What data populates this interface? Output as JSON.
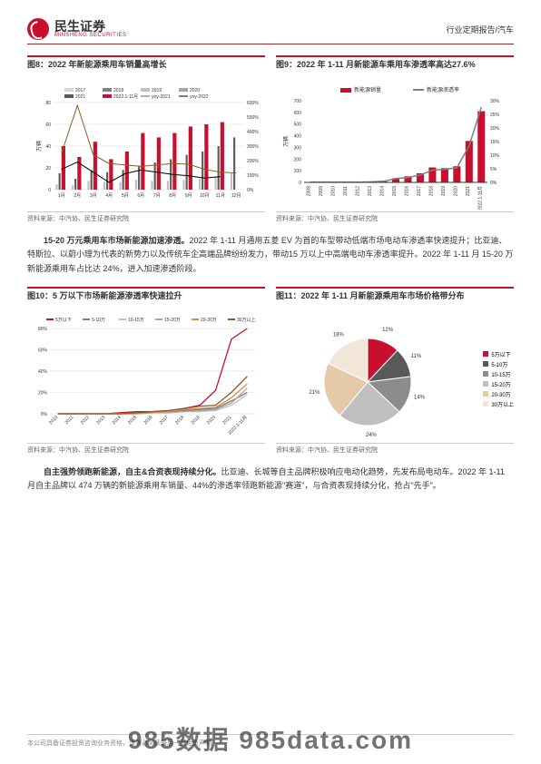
{
  "header": {
    "logo_cn": "民生证券",
    "logo_en": "MINSHENG SECURITIES",
    "right": "行业定期报告/汽车"
  },
  "fig8": {
    "title": "图8：2022 年新能源乘用车销量高增长",
    "source": "资料来源：中汽协、民生证券研究院",
    "type": "bar+line",
    "legend_bars": [
      {
        "label": "2017",
        "color": "#d9d9d9"
      },
      {
        "label": "2018",
        "color": "#7f7f7f"
      },
      {
        "label": "2019",
        "color": "#bfbfbf"
      },
      {
        "label": "2020",
        "color": "#a6a6a6"
      },
      {
        "label": "2021",
        "color": "#595959"
      },
      {
        "label": "2022.1-11月",
        "color": "#c8102e"
      }
    ],
    "legend_lines": [
      {
        "label": "yoy-2021",
        "color": "#8c5a2b"
      },
      {
        "label": "yoy-2022",
        "color": "#000000"
      }
    ],
    "y_left_label": "万辆",
    "y_left_ticks": [
      0,
      20,
      40,
      60,
      80
    ],
    "y_right_ticks": [
      "0%",
      "100%",
      "200%",
      "300%",
      "400%",
      "500%",
      "600%"
    ],
    "x": [
      "1月",
      "2月",
      "3月",
      "4月",
      "5月",
      "6月",
      "7月",
      "8月",
      "9月",
      "10月",
      "11月",
      "12月"
    ],
    "bars_2022": [
      40,
      30,
      44,
      28,
      35,
      52,
      48,
      52,
      58,
      60,
      62,
      0
    ],
    "bars_2021": [
      15,
      10,
      18,
      16,
      18,
      22,
      25,
      28,
      32,
      35,
      40,
      48
    ],
    "bars_grey": [
      5,
      4,
      8,
      7,
      7,
      9,
      8,
      8,
      9,
      10,
      12,
      15
    ],
    "line_2021": [
      250,
      580,
      240,
      180,
      170,
      160,
      170,
      180,
      175,
      140,
      120,
      115
    ],
    "line_2022": [
      140,
      190,
      120,
      50,
      110,
      135,
      120,
      105,
      95,
      80,
      90,
      0
    ]
  },
  "fig9": {
    "title": "图9：2022 年 1-11 月新能源车乘用车渗透率高达27.6%",
    "source": "资料来源：中汽协、民生证券研究院",
    "type": "bar+line",
    "legend": [
      {
        "label": "新能源销量",
        "color": "#c8102e",
        "kind": "bar"
      },
      {
        "label": "新能源渗透率",
        "color": "#7f7f7f",
        "kind": "line"
      }
    ],
    "y_left_label": "万辆",
    "y_left_ticks": [
      0,
      100,
      200,
      300,
      400,
      500,
      600,
      700
    ],
    "y_right_ticks": [
      "0%",
      "5%",
      "10%",
      "15%",
      "20%",
      "25%",
      "30%"
    ],
    "x": [
      "2008",
      "2009",
      "2010",
      "2011",
      "2012",
      "2013",
      "2014",
      "2015",
      "2016",
      "2017",
      "2018",
      "2019",
      "2020",
      "2021",
      "2022.1-11月"
    ],
    "bars": [
      1,
      1,
      1,
      1,
      2,
      3,
      8,
      35,
      52,
      78,
      128,
      122,
      138,
      355,
      610
    ],
    "line": [
      0.1,
      0.1,
      0.1,
      0.1,
      0.1,
      0.2,
      0.4,
      1.4,
      1.8,
      2.7,
      4.5,
      4.8,
      5.4,
      13.4,
      27.6
    ]
  },
  "para1_bold": "15-20 万元乘用车市场新能源加速渗透。",
  "para1_rest": "2022 年 1-11 月通用五菱 EV 为首的车型带动低端市场电动车渗透率快速提升；比亚迪、特斯拉、以蔚小理为代表的新势力以及传统车企高端品牌纷纷发力，带动15 万以上中高端电动车渗透率提升。2022 年 1-11 月 15-20 万新能源乘用车占比达 24%，进入加速渗透阶段。",
  "fig10": {
    "title": "图10：5 万以下市场新能源渗透率快速拉升",
    "source": "资料来源：中汽协、民生证券研究院",
    "type": "line",
    "legend": [
      {
        "label": "5万以下",
        "color": "#c8102e"
      },
      {
        "label": "5-10万",
        "color": "#7f7f7f"
      },
      {
        "label": "10-15万",
        "color": "#bfbfbf"
      },
      {
        "label": "15-20万",
        "color": "#a6a6a6"
      },
      {
        "label": "20-30万",
        "color": "#d98c4a"
      },
      {
        "label": "30万以上",
        "color": "#8c5a2b"
      }
    ],
    "y_ticks": [
      "0%",
      "20%",
      "40%",
      "60%",
      "80%"
    ],
    "x": [
      "2010",
      "2011",
      "2012",
      "2013",
      "2014",
      "2015",
      "2016",
      "2017",
      "2018",
      "2019",
      "2020",
      "2021",
      "2022.1-11月"
    ],
    "series": {
      "5万以下": [
        0,
        0,
        0,
        0,
        1,
        2,
        2,
        3,
        5,
        8,
        22,
        70,
        80
      ],
      "5-10万": [
        0,
        0,
        0,
        0,
        0,
        1,
        1,
        2,
        3,
        4,
        5,
        12,
        20
      ],
      "10-15万": [
        0,
        0,
        0,
        0,
        0,
        0,
        1,
        1,
        2,
        2,
        3,
        8,
        18
      ],
      "15-20万": [
        0,
        0,
        0,
        0,
        0,
        0,
        1,
        1,
        2,
        3,
        4,
        10,
        24
      ],
      "20-30万": [
        0,
        0,
        0,
        0,
        0,
        0,
        1,
        2,
        4,
        5,
        6,
        15,
        28
      ],
      "30万以上": [
        0,
        0,
        0,
        0,
        0,
        1,
        2,
        3,
        5,
        7,
        8,
        20,
        35
      ]
    }
  },
  "fig11": {
    "title": "图11：2022 年 1-11 月新能源乘用车市场价格带分布",
    "source": "资料来源：中汽协、民生证券研究院",
    "type": "pie",
    "slices": [
      {
        "label": "5万以下",
        "value": 12,
        "color": "#c8102e"
      },
      {
        "label": "5-10万",
        "value": 11,
        "color": "#595959"
      },
      {
        "label": "10-15万",
        "value": 14,
        "color": "#8c8c8c"
      },
      {
        "label": "15-20万",
        "value": 24,
        "color": "#bfbfbf"
      },
      {
        "label": "20-30万",
        "value": 21,
        "color": "#e6c9a8"
      },
      {
        "label": "30万以上",
        "value": 18,
        "color": "#f2e6d9"
      }
    ]
  },
  "para2_bold": "自主强势领跑新能源，自主&合资表现持续分化。",
  "para2_rest": "比亚迪、长城等自主品牌积极响应电动化趋势，先发布局电动车。2022 年 1-11 月自主品牌以 474 万辆的新能源乘用车销量、44%的渗透率领跑新能源\"赛道\"，与合资表现持续分化，抢占\"先手\"。",
  "footer": "本公司具备证券投资咨询业务资格，请务必阅读最后一页免责声明",
  "watermark": "985数据  985data.com"
}
